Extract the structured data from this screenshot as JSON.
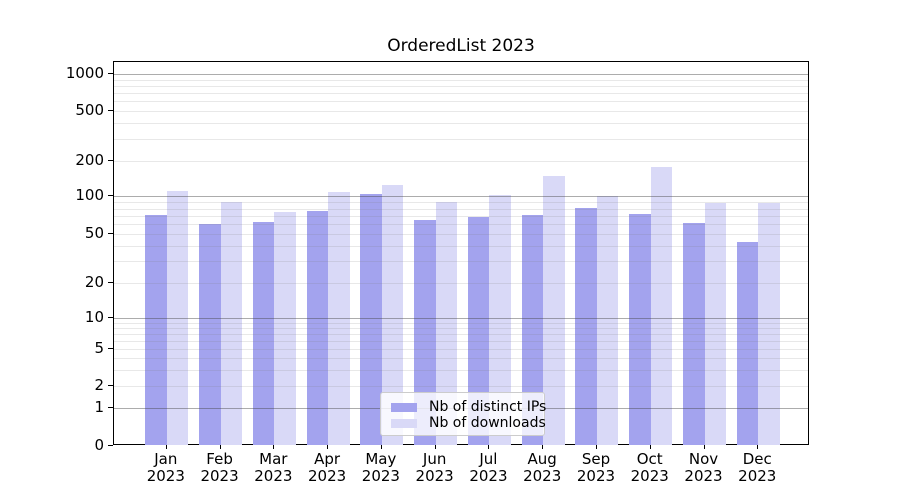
{
  "chart_data": {
    "type": "bar",
    "title": "OrderedList 2023",
    "categories": [
      "Jan 2023",
      "Feb 2023",
      "Mar 2023",
      "Apr 2023",
      "May 2023",
      "Jun 2023",
      "Jul 2023",
      "Aug 2023",
      "Sep 2023",
      "Oct 2023",
      "Nov 2023",
      "Dec 2023"
    ],
    "series": [
      {
        "name": "Nb of distinct IPs",
        "color": "#a3a3ee",
        "values": [
          71,
          60,
          63,
          76,
          105,
          65,
          69,
          71,
          81,
          72,
          62,
          43
        ]
      },
      {
        "name": "Nb of downloads",
        "color": "#d9d9f7",
        "values": [
          112,
          90,
          75,
          109,
          125,
          90,
          103,
          148,
          101,
          178,
          89,
          89
        ]
      }
    ],
    "xlabel": "",
    "ylabel": "",
    "yscale": "symlog",
    "yticks": [
      0,
      1,
      2,
      5,
      10,
      20,
      50,
      100,
      200,
      500,
      1000
    ],
    "ylim": [
      0,
      1300
    ],
    "grid": true,
    "legend_position": "lower center",
    "colors": {
      "grid_major": "#b3b3b3",
      "grid_minor": "#e6e6e6",
      "spine": "#000000",
      "text": "#000000",
      "background": "#ffffff"
    }
  }
}
